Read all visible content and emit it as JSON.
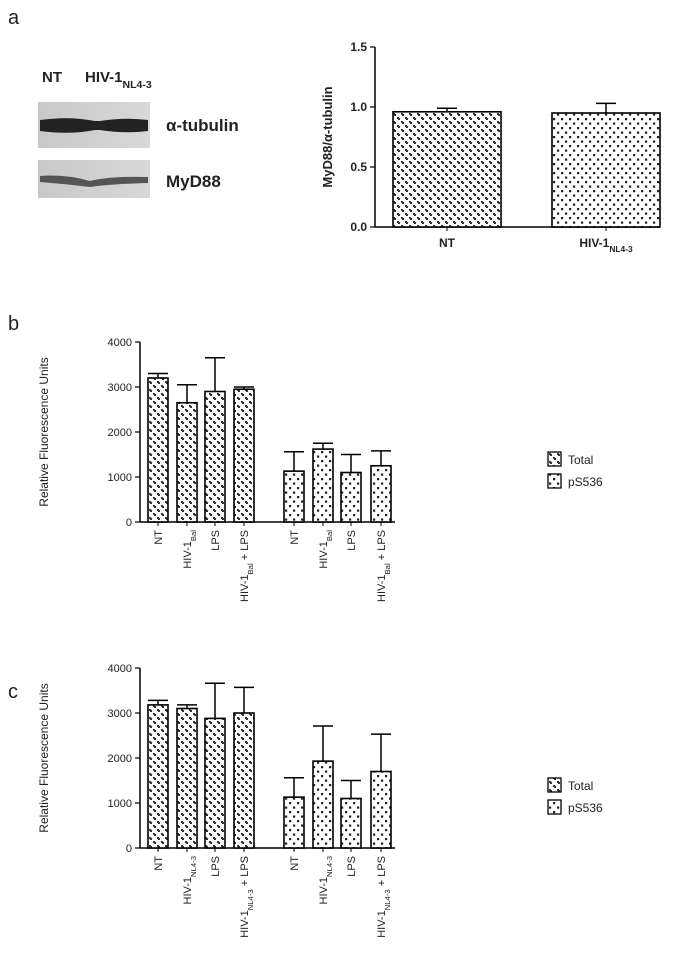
{
  "panels": [
    "a",
    "b",
    "c"
  ],
  "blot": {
    "lanes": [
      [
        "NT"
      ],
      [
        "HIV-1",
        "NL4-3"
      ]
    ],
    "bands": [
      "α-tubulin",
      "MyD88"
    ]
  },
  "chart_data": [
    {
      "type": "bar",
      "ylabel": "MyD88/α-tubulin",
      "categories": [
        [
          "NT"
        ],
        [
          "HIV-1",
          "NL4-3"
        ]
      ],
      "values": [
        0.96,
        0.95
      ],
      "errors": [
        0.03,
        0.08
      ],
      "color": "#000000",
      "ylim": [
        0,
        1.5
      ],
      "yticks": [
        {
          "value": 0,
          "label": "0.0"
        },
        0.5,
        {
          "value": 1,
          "label": "1.0"
        },
        1.5
      ]
    },
    {
      "type": "bar",
      "ylabel": "Relative Fluorescence Units",
      "categories": [
        [
          "NT"
        ],
        [
          "HIV-1",
          "Bal"
        ],
        [
          "LPS"
        ],
        [
          "HIV-1",
          "Bal",
          " + LPS"
        ],
        [
          "NT"
        ],
        [
          "HIV-1",
          "Bal"
        ],
        [
          "LPS"
        ],
        [
          "HIV-1",
          "Bal",
          " + LPS"
        ]
      ],
      "series": [
        {
          "name": "Total",
          "color": "#000000",
          "values": [
            3200,
            2650,
            2900,
            2950,
            null,
            null,
            null,
            null
          ],
          "errors": [
            100,
            400,
            750,
            50,
            null,
            null,
            null,
            null
          ]
        },
        {
          "name": "pS536",
          "color": "#000000",
          "values": [
            null,
            null,
            null,
            null,
            1130,
            1620,
            1100,
            1250
          ],
          "errors": [
            null,
            null,
            null,
            null,
            430,
            130,
            400,
            330
          ]
        }
      ],
      "ylim": [
        0,
        4000
      ],
      "yticks": [
        0,
        1000,
        2000,
        3000,
        4000
      ],
      "legend": "right"
    },
    {
      "type": "bar",
      "ylabel": "Relative Fluorescence Units",
      "categories": [
        [
          "NT"
        ],
        [
          "HIV-1",
          "NL4-3"
        ],
        [
          "LPS"
        ],
        [
          "HIV-1",
          "NL4-3",
          " + LPS"
        ],
        [
          "NT"
        ],
        [
          "HIV-1",
          "NL4-3"
        ],
        [
          "LPS"
        ],
        [
          "HIV-1",
          "NL4-3",
          " + LPS"
        ]
      ],
      "series": [
        {
          "name": "Total",
          "color": "#000000",
          "values": [
            3180,
            3100,
            2880,
            3000,
            null,
            null,
            null,
            null
          ],
          "errors": [
            100,
            80,
            780,
            570,
            null,
            null,
            null,
            null
          ]
        },
        {
          "name": "pS536",
          "color": "#000000",
          "values": [
            null,
            null,
            null,
            null,
            1130,
            1930,
            1100,
            1700
          ],
          "errors": [
            null,
            null,
            null,
            null,
            430,
            780,
            400,
            830
          ]
        }
      ],
      "ylim": [
        0,
        4000
      ],
      "yticks": [
        0,
        1000,
        2000,
        3000,
        4000
      ],
      "legend": "right"
    }
  ]
}
